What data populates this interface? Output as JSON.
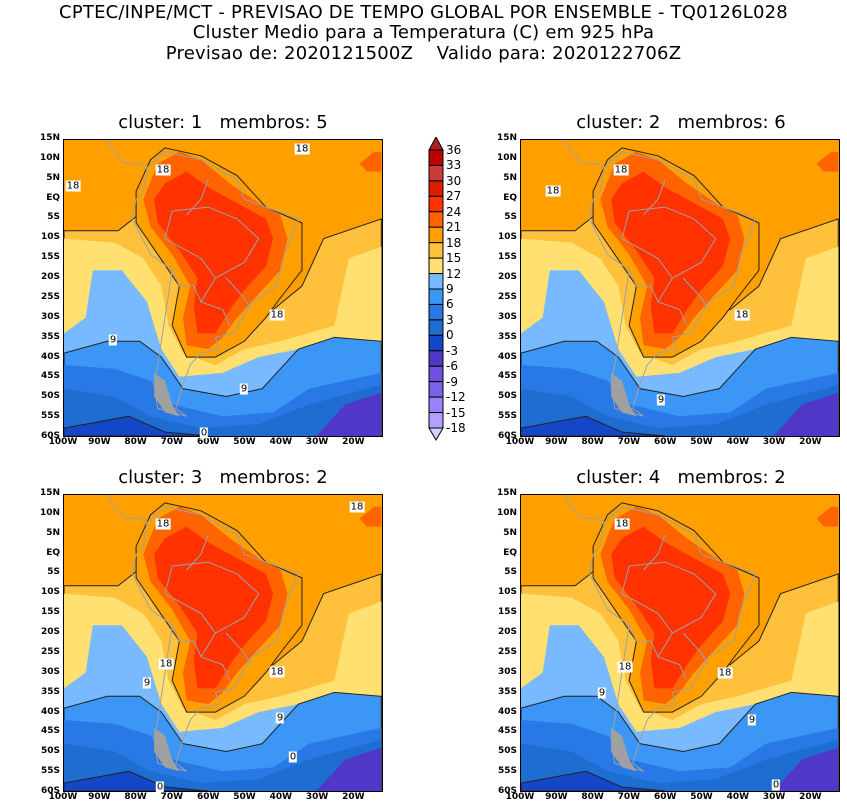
{
  "header": {
    "line1": "CPTEC/INPE/MCT - PREVISAO DE TEMPO GLOBAL POR ENSEMBLE - TQ0126L028",
    "line2": "Cluster Medio para a Temperatura (C) em 925 hPa",
    "line3": "Previsao de: 2020121500Z    Valido para: 2020122706Z"
  },
  "axes": {
    "lat_labels": [
      "15N",
      "10N",
      "5N",
      "EQ",
      "5S",
      "10S",
      "15S",
      "20S",
      "25S",
      "30S",
      "35S",
      "40S",
      "45S",
      "50S",
      "55S",
      "60S"
    ],
    "lon_labels": [
      "100W",
      "90W",
      "80W",
      "70W",
      "60W",
      "50W",
      "40W",
      "30W",
      "20W"
    ]
  },
  "colorbar": {
    "labels": [
      "36",
      "33",
      "30",
      "27",
      "24",
      "21",
      "18",
      "15",
      "12",
      "9",
      "6",
      "3",
      "0",
      "-3",
      "-6",
      "-9",
      "-12",
      "-15",
      "-18"
    ],
    "colors": [
      "#b41e1e",
      "#c00000",
      "#c83c3c",
      "#dc1e00",
      "#ff3200",
      "#ff6400",
      "#ffa000",
      "#ffc03c",
      "#ffe070",
      "#78b9ff",
      "#3c96f5",
      "#2878e6",
      "#1e6ed2",
      "#1446c8",
      "#5037c8",
      "#7050dc",
      "#7864e6",
      "#9a82ff",
      "#b4a0ff",
      "#d2d2ff"
    ]
  },
  "panels": [
    {
      "title": "cluster: 1   membros: 5",
      "contour_labels": [
        "18",
        "18",
        "18",
        "18",
        "9",
        "9",
        "0"
      ]
    },
    {
      "title": "cluster: 2   membros: 6",
      "contour_labels": [
        "18",
        "18",
        "18",
        "9"
      ]
    },
    {
      "title": "cluster: 3   membros: 2",
      "contour_labels": [
        "18",
        "18",
        "18",
        "18",
        "9",
        "9",
        "0",
        "0"
      ]
    },
    {
      "title": "cluster: 4   membros: 2",
      "contour_labels": [
        "18",
        "18",
        "18",
        "9",
        "9",
        "0"
      ]
    }
  ]
}
